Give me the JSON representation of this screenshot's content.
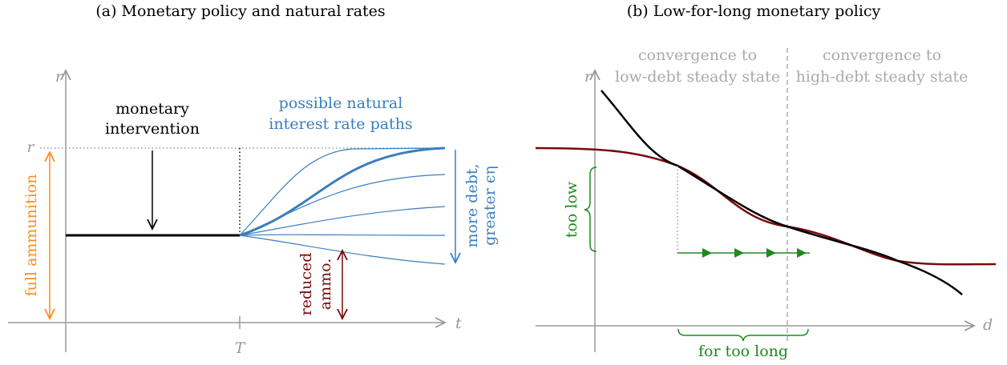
{
  "panel_a": {
    "title": "(a) Monetary policy and natural rates",
    "axis_labels": {
      "y": "r",
      "x": "t",
      "x_tick": "T",
      "level": "r"
    },
    "annotations": {
      "intervention": [
        "monetary",
        "intervention"
      ],
      "paths": [
        "possible natural",
        "interest rate paths"
      ],
      "debt": [
        "more debt,",
        "greater ϵη"
      ],
      "full": "full ammunition",
      "reduced": [
        "reduced",
        "ammo."
      ]
    }
  },
  "panel_b": {
    "title": "(b) Low-for-long monetary policy",
    "axis_labels": {
      "y": "r",
      "x": "d"
    },
    "annotations": {
      "low_debt": [
        "convergence to",
        "low-debt steady state"
      ],
      "high_debt": [
        "convergence to",
        "high-debt steady state"
      ],
      "too_low": "too low",
      "too_long": "for too long"
    }
  }
}
